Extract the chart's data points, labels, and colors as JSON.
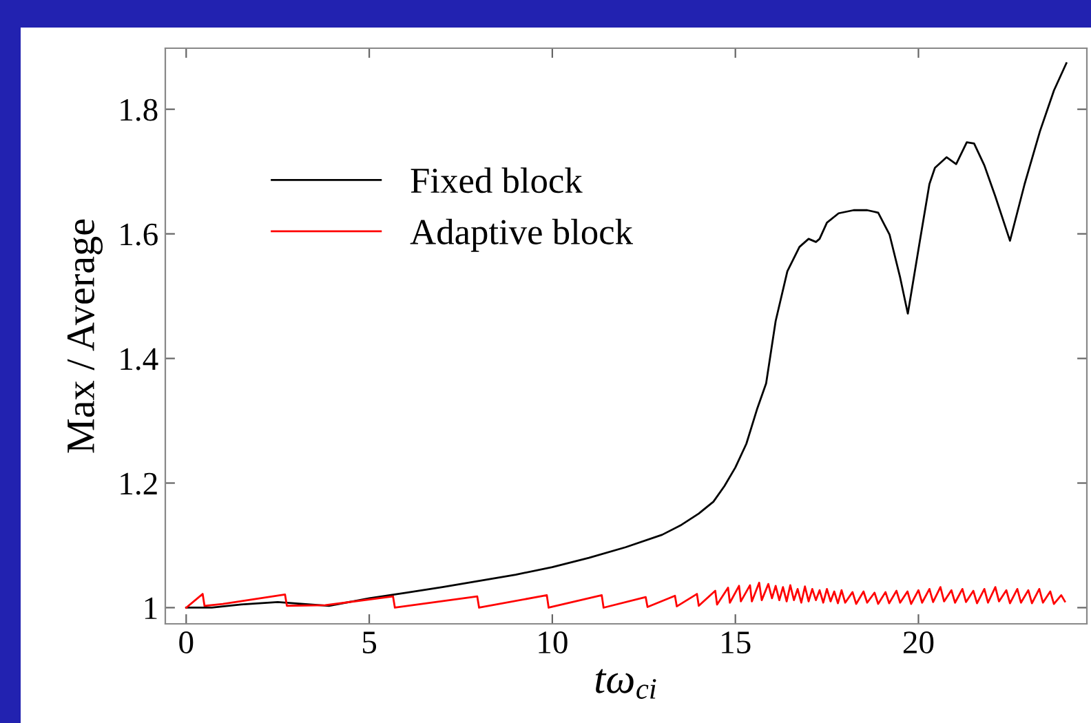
{
  "chart_data": {
    "type": "line",
    "xlabel": "tω$_{ci}$",
    "ylabel": "Max / Average",
    "xlim": [
      -0.57,
      24.6
    ],
    "ylim": [
      0.974,
      1.898
    ],
    "xticks": [
      0,
      5,
      10,
      15,
      20
    ],
    "yticks": [
      1,
      1.2,
      1.4,
      1.6,
      1.8
    ],
    "grid": false,
    "legend": "top left",
    "marker": "none",
    "line_style": "solid",
    "series": [
      {
        "name": "Fixed block",
        "color": "#000000",
        "x": [
          0,
          0.7,
          1.5,
          2.5,
          3.2,
          3.9,
          5,
          6,
          7,
          8,
          9,
          10,
          11,
          12,
          13,
          13.5,
          14,
          14.4,
          14.7,
          15.0,
          15.3,
          15.6,
          15.84,
          16.1,
          16.42,
          16.75,
          17.0,
          17.2,
          17.3,
          17.5,
          17.82,
          18.23,
          18.6,
          18.9,
          19.21,
          19.5,
          19.71,
          20.04,
          20.3,
          20.45,
          20.77,
          21.03,
          21.32,
          21.52,
          21.8,
          22.1,
          22.5,
          22.9,
          23.32,
          23.7,
          24.04
        ],
        "values": [
          1.0,
          1.0,
          1.005,
          1.009,
          1.006,
          1.003,
          1.015,
          1.024,
          1.033,
          1.043,
          1.053,
          1.065,
          1.08,
          1.097,
          1.117,
          1.132,
          1.151,
          1.17,
          1.195,
          1.225,
          1.263,
          1.32,
          1.36,
          1.46,
          1.54,
          1.579,
          1.592,
          1.587,
          1.592,
          1.618,
          1.633,
          1.638,
          1.638,
          1.634,
          1.599,
          1.53,
          1.472,
          1.589,
          1.68,
          1.706,
          1.723,
          1.712,
          1.747,
          1.745,
          1.71,
          1.66,
          1.589,
          1.68,
          1.765,
          1.83,
          1.874
        ]
      },
      {
        "name": "Adaptive block",
        "color": "#ff0000",
        "x": [
          0,
          0.45,
          0.5,
          1.0,
          2.7,
          2.75,
          3.8,
          5.65,
          5.7,
          7.95,
          8.0,
          9.85,
          9.9,
          11.35,
          11.4,
          12.55,
          12.6,
          13.35,
          13.4,
          13.95,
          14.0,
          14.45,
          14.5,
          14.8,
          14.85,
          15.1,
          15.15,
          15.4,
          15.45,
          15.65,
          15.72,
          15.9,
          16.0,
          16.1,
          16.2,
          16.3,
          16.4,
          16.5,
          16.6,
          16.7,
          16.8,
          16.9,
          17.0,
          17.1,
          17.2,
          17.3,
          17.4,
          17.5,
          17.6,
          17.7,
          17.8,
          17.9,
          18.0,
          18.2,
          18.3,
          18.5,
          18.6,
          18.8,
          18.9,
          19.1,
          19.2,
          19.4,
          19.5,
          19.7,
          19.8,
          20.0,
          20.1,
          20.3,
          20.4,
          20.6,
          20.7,
          20.9,
          21.0,
          21.2,
          21.3,
          21.5,
          21.6,
          21.8,
          21.9,
          22.1,
          22.2,
          22.4,
          22.5,
          22.7,
          22.8,
          23.0,
          23.1,
          23.3,
          23.4,
          23.6,
          23.7,
          23.9,
          24.0
        ],
        "values": [
          1.0,
          1.022,
          1.003,
          1.006,
          1.021,
          1.003,
          1.004,
          1.018,
          1.0,
          1.018,
          1.0,
          1.02,
          1.0,
          1.02,
          1.0,
          1.017,
          1.001,
          1.019,
          1.002,
          1.022,
          1.003,
          1.027,
          1.005,
          1.032,
          1.008,
          1.035,
          1.01,
          1.036,
          1.01,
          1.04,
          1.012,
          1.038,
          1.015,
          1.035,
          1.012,
          1.033,
          1.01,
          1.036,
          1.012,
          1.03,
          1.008,
          1.034,
          1.01,
          1.03,
          1.012,
          1.028,
          1.008,
          1.03,
          1.01,
          1.026,
          1.007,
          1.028,
          1.008,
          1.025,
          1.006,
          1.026,
          1.008,
          1.024,
          1.006,
          1.025,
          1.007,
          1.027,
          1.008,
          1.026,
          1.006,
          1.028,
          1.008,
          1.03,
          1.009,
          1.033,
          1.01,
          1.028,
          1.008,
          1.03,
          1.009,
          1.027,
          1.007,
          1.03,
          1.008,
          1.033,
          1.01,
          1.028,
          1.007,
          1.03,
          1.008,
          1.028,
          1.007,
          1.03,
          1.008,
          1.026,
          1.006,
          1.02,
          1.01
        ]
      }
    ]
  }
}
